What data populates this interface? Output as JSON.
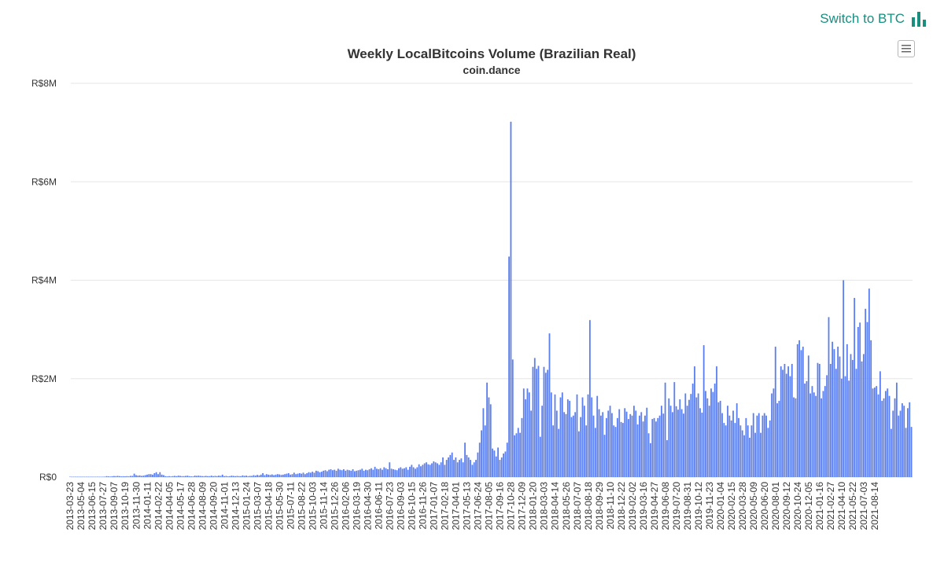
{
  "switch": {
    "label": "Switch to BTC",
    "icon": "bar-chart-icon",
    "color": "#1a8f80"
  },
  "menu": {
    "icon": "hamburger-menu-icon"
  },
  "chart_data": {
    "type": "bar",
    "title": "Weekly LocalBitcoins Volume (Brazilian Real)",
    "subtitle": "coin.dance",
    "xlabel": "",
    "ylabel": "",
    "ylim": [
      0,
      8000000
    ],
    "y_ticks": [
      {
        "value": 0,
        "label": "R$0"
      },
      {
        "value": 2000000,
        "label": "R$2M"
      },
      {
        "value": 4000000,
        "label": "R$4M"
      },
      {
        "value": 6000000,
        "label": "R$6M"
      },
      {
        "value": 8000000,
        "label": "R$8M"
      }
    ],
    "x_tick_labels": [
      "2013-03-23",
      "2013-05-04",
      "2013-06-15",
      "2013-07-27",
      "2013-09-07",
      "2013-10-19",
      "2013-11-30",
      "2014-01-11",
      "2014-02-22",
      "2014-04-05",
      "2014-05-17",
      "2014-06-28",
      "2014-08-09",
      "2014-09-20",
      "2014-11-01",
      "2014-12-13",
      "2015-01-24",
      "2015-03-07",
      "2015-04-18",
      "2015-05-30",
      "2015-07-11",
      "2015-08-22",
      "2015-10-03",
      "2015-11-14",
      "2015-12-26",
      "2016-02-06",
      "2016-03-19",
      "2016-04-30",
      "2016-06-11",
      "2016-07-23",
      "2016-09-03",
      "2016-10-15",
      "2016-11-26",
      "2017-01-07",
      "2017-02-18",
      "2017-04-01",
      "2017-05-13",
      "2017-06-24",
      "2017-08-05",
      "2017-09-16",
      "2017-10-28",
      "2017-12-09",
      "2018-01-20",
      "2018-03-03",
      "2018-04-14",
      "2018-05-26",
      "2018-07-07",
      "2018-08-18",
      "2018-09-29",
      "2018-11-10",
      "2018-12-22",
      "2019-02-02",
      "2019-03-16",
      "2019-04-27",
      "2019-06-08",
      "2019-07-20",
      "2019-08-31",
      "2019-10-12",
      "2019-11-23",
      "2020-01-04",
      "2020-02-15",
      "2020-03-28",
      "2020-05-09",
      "2020-06-20",
      "2020-08-01",
      "2020-09-12",
      "2020-10-24",
      "2020-12-05",
      "2021-01-16",
      "2021-02-27",
      "2021-04-10",
      "2021-05-22",
      "2021-07-03",
      "2021-08-14"
    ],
    "bar_color": "#5b7ff0",
    "grid": true,
    "legend": "none",
    "weeks_between_ticks": 6,
    "series": [
      {
        "values": [
          2000,
          2500,
          3000,
          2000,
          3000,
          2500,
          5000,
          8000,
          5000,
          4000,
          3000,
          5000,
          6000,
          6000,
          8000,
          7000,
          5000,
          6000,
          8000,
          10000,
          20000,
          15000,
          12000,
          18000,
          22000,
          20000,
          25000,
          20000,
          15000,
          18000,
          15000,
          20000,
          15000,
          25000,
          25000,
          70000,
          40000,
          30000,
          35000,
          25000,
          30000,
          40000,
          50000,
          60000,
          60000,
          50000,
          80000,
          100000,
          60000,
          100000,
          50000,
          40000,
          20000,
          15000,
          20000,
          15000,
          20000,
          25000,
          20000,
          30000,
          25000,
          20000,
          20000,
          25000,
          30000,
          20000,
          15000,
          15000,
          30000,
          25000,
          30000,
          25000,
          20000,
          20000,
          25000,
          20000,
          20000,
          30000,
          20000,
          25000,
          20000,
          30000,
          25000,
          50000,
          20000,
          25000,
          15000,
          20000,
          30000,
          25000,
          20000,
          25000,
          20000,
          20000,
          35000,
          25000,
          30000,
          20000,
          25000,
          25000,
          40000,
          30000,
          45000,
          35000,
          50000,
          80000,
          40000,
          60000,
          50000,
          45000,
          55000,
          40000,
          50000,
          60000,
          55000,
          45000,
          50000,
          60000,
          70000,
          80000,
          50000,
          60000,
          90000,
          60000,
          70000,
          80000,
          70000,
          90000,
          60000,
          80000,
          100000,
          90000,
          110000,
          90000,
          130000,
          120000,
          100000,
          110000,
          130000,
          140000,
          120000,
          150000,
          160000,
          140000,
          150000,
          130000,
          170000,
          150000,
          140000,
          160000,
          130000,
          150000,
          140000,
          130000,
          160000,
          120000,
          130000,
          140000,
          150000,
          170000,
          130000,
          150000,
          140000,
          160000,
          180000,
          150000,
          210000,
          170000,
          160000,
          180000,
          150000,
          200000,
          180000,
          160000,
          300000,
          170000,
          160000,
          150000,
          140000,
          180000,
          200000,
          170000,
          180000,
          200000,
          150000,
          210000,
          250000,
          200000,
          170000,
          200000,
          260000,
          220000,
          250000,
          280000,
          300000,
          260000,
          250000,
          280000,
          320000,
          300000,
          280000,
          250000,
          300000,
          400000,
          250000,
          350000,
          400000,
          450000,
          500000,
          350000,
          400000,
          300000,
          350000,
          380000,
          300000,
          700000,
          450000,
          400000,
          350000,
          250000,
          300000,
          350000,
          500000,
          700000,
          950000,
          1400000,
          1050000,
          1920000,
          1620000,
          1480000,
          580000,
          540000,
          420000,
          600000,
          350000,
          400000,
          480000,
          520000,
          700000,
          4480000,
          7220000,
          2390000,
          850000,
          890000,
          1000000,
          900000,
          1200000,
          1800000,
          1580000,
          1800000,
          1720000,
          1350000,
          2240000,
          2420000,
          2200000,
          2260000,
          820000,
          1450000,
          2240000,
          2120000,
          2180000,
          2920000,
          1720000,
          1050000,
          1680000,
          1350000,
          980000,
          1620000,
          1720000,
          1320000,
          1280000,
          1580000,
          1550000,
          1220000,
          1250000,
          1320000,
          1680000,
          930000,
          1220000,
          1620000,
          1450000,
          1050000,
          1680000,
          3190000,
          1620000,
          1250000,
          1000000,
          1650000,
          1380000,
          1250000,
          1320000,
          860000,
          1200000,
          1350000,
          1450000,
          1300000,
          1050000,
          1020000,
          1200000,
          1380000,
          1120000,
          1100000,
          1400000,
          1330000,
          1180000,
          1280000,
          1250000,
          1450000,
          1350000,
          1070000,
          1250000,
          1320000,
          1130000,
          1250000,
          1410000,
          890000,
          690000,
          1180000,
          1200000,
          1130000,
          1200000,
          1250000,
          1450000,
          1290000,
          1920000,
          750000,
          1600000,
          1450000,
          1320000,
          1930000,
          1440000,
          1370000,
          1580000,
          1380000,
          1290000,
          1700000,
          1450000,
          1570000,
          1690000,
          1900000,
          2250000,
          1620000,
          1700000,
          1400000,
          1310000,
          2680000,
          1750000,
          1600000,
          1450000,
          1800000,
          1730000,
          1900000,
          2250000,
          1520000,
          1550000,
          1300000,
          1100000,
          1050000,
          1450000,
          1250000,
          1150000,
          1350000,
          1100000,
          1500000,
          1200000,
          1050000,
          950000,
          850000,
          1200000,
          1050000,
          800000,
          1050000,
          1300000,
          900000,
          1250000,
          1300000,
          900000,
          1250000,
          1300000,
          1250000,
          1000000,
          1150000,
          1700000,
          1800000,
          2650000,
          1500000,
          1550000,
          2250000,
          2180000,
          2300000,
          2100000,
          2250000,
          2050000,
          2300000,
          1620000,
          1600000,
          2700000,
          2780000,
          2580000,
          2650000,
          1900000,
          1950000,
          2470000,
          1700000,
          1850000,
          1720000,
          1650000,
          2320000,
          2300000,
          1600000,
          1750000,
          1850000,
          2070000,
          3250000,
          2300000,
          2750000,
          2600000,
          2200000,
          2650000,
          2450000,
          2000000,
          4000000,
          2050000,
          2700000,
          1960000,
          2500000,
          2380000,
          3640000,
          2200000,
          3050000,
          3140000,
          2350000,
          2500000,
          3420000,
          3150000,
          3830000,
          2780000,
          1800000,
          1820000,
          1850000,
          1680000,
          2150000,
          1550000,
          1600000,
          1750000,
          1800000,
          1650000,
          980000,
          1350000,
          1600000,
          1920000,
          1250000,
          1350000,
          1500000,
          1450000,
          1000000,
          1400000,
          1520000,
          1020000
        ]
      }
    ]
  }
}
